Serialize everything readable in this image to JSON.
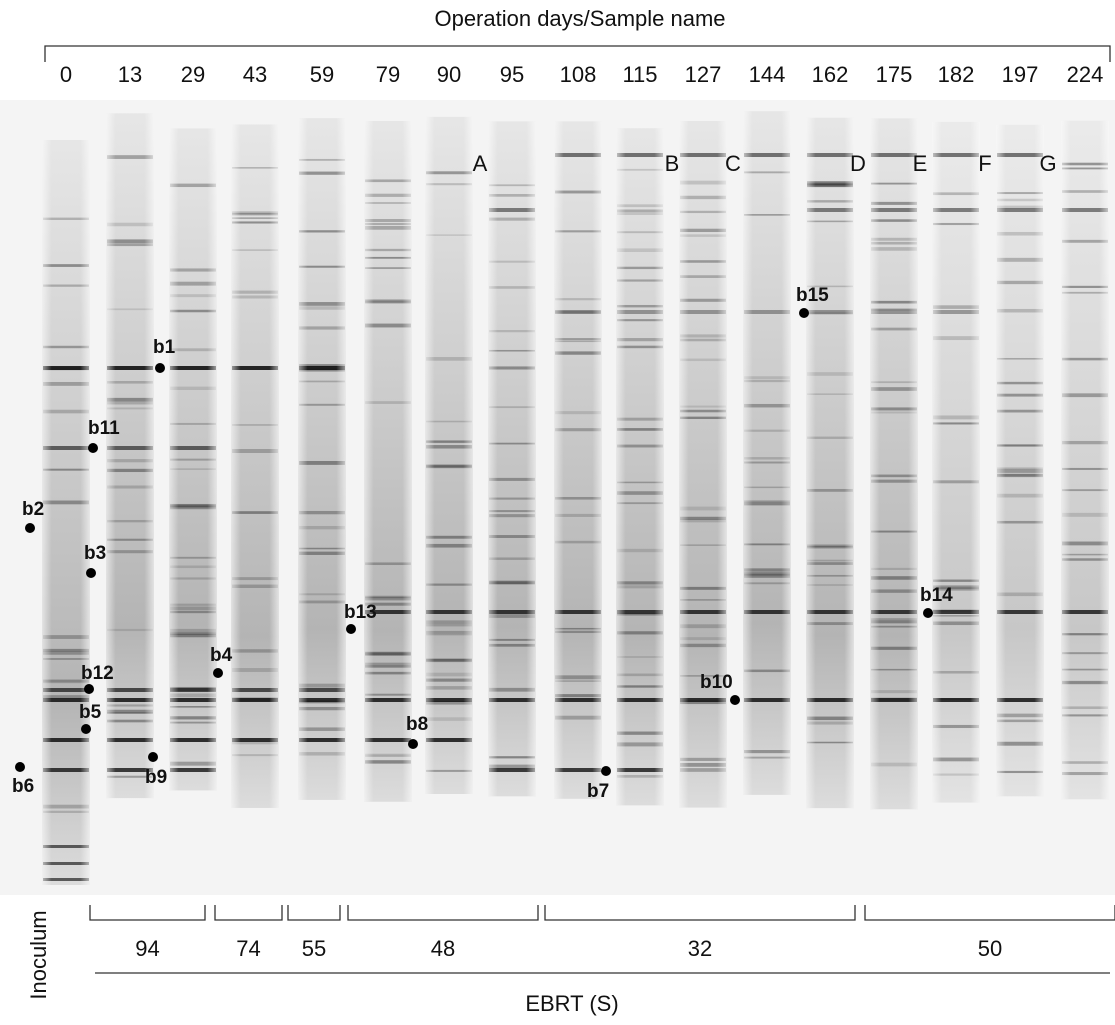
{
  "header": {
    "title": "Operation days/Sample name"
  },
  "lanes": [
    0,
    13,
    29,
    43,
    59,
    79,
    90,
    95,
    108,
    115,
    127,
    144,
    162,
    175,
    182,
    197,
    224
  ],
  "sample_names": [
    "A",
    "B",
    "C",
    "D",
    "E",
    "F",
    "G"
  ],
  "bands": [
    "b1",
    "b2",
    "b3",
    "b4",
    "b5",
    "b6",
    "b7",
    "b8",
    "b9",
    "b10",
    "b11",
    "b12",
    "b13",
    "b14",
    "b15"
  ],
  "ebrt": {
    "groups": [
      94,
      74,
      55,
      48,
      32,
      50
    ],
    "inoculum": "Inoculum",
    "axis_label": "EBRT (S)"
  }
}
